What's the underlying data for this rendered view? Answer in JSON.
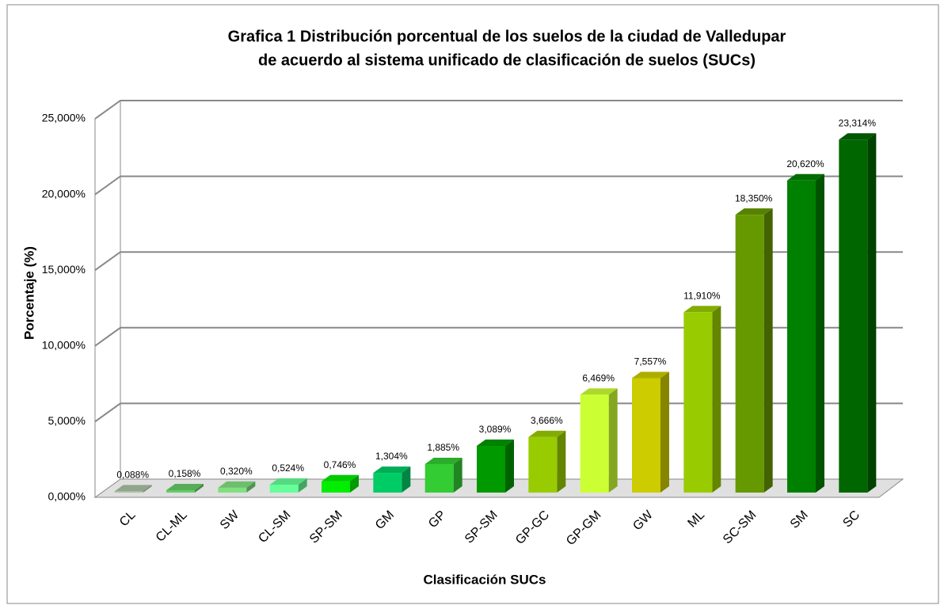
{
  "chart_data": {
    "type": "bar3d",
    "title": [
      "Grafica  1 Distribución porcentual de los suelos de la ciudad de Valledupar",
      "de acuerdo al sistema unificado de clasificación de suelos (SUCs)"
    ],
    "x_label": "Clasificación SUCs",
    "y_label": "Porcentaje (%)",
    "categories": [
      "CL",
      "CL-ML",
      "SW",
      "CL-SM",
      "SP-SM",
      "GM",
      "GP",
      "SP-SM",
      "GP-GC",
      "GP-GM",
      "GW",
      "ML",
      "SC-SM",
      "SM",
      "SC"
    ],
    "values": [
      0.088,
      0.158,
      0.32,
      0.524,
      0.746,
      1.304,
      1.885,
      3.089,
      3.666,
      6.469,
      7.557,
      11.91,
      18.35,
      20.62,
      23.314
    ],
    "value_labels": [
      "0,088%",
      "0,158%",
      "0,320%",
      "0,524%",
      "0,746%",
      "1,304%",
      "1,885%",
      "3,089%",
      "3,666%",
      "6,469%",
      "7,557%",
      "11,910%",
      "18,350%",
      "20,620%",
      "23,314%"
    ],
    "colors": [
      "#a9c2a4",
      "#66cc66",
      "#80e080",
      "#66ff99",
      "#00ee00",
      "#00cc66",
      "#33cc33",
      "#009900",
      "#99cc00",
      "#ccff33",
      "#cccc00",
      "#99cc00",
      "#669900",
      "#008000",
      "#006600"
    ],
    "ylim": [
      0,
      25
    ],
    "yticks": [
      {
        "value": 0,
        "label": "0,000%"
      },
      {
        "value": 5,
        "label": "5,000%"
      },
      {
        "value": 10,
        "label": "10,000%"
      },
      {
        "value": 15,
        "label": "15,000%"
      },
      {
        "value": 20,
        "label": "20,000%"
      },
      {
        "value": 25,
        "label": "25,000%"
      }
    ],
    "grid": true
  }
}
